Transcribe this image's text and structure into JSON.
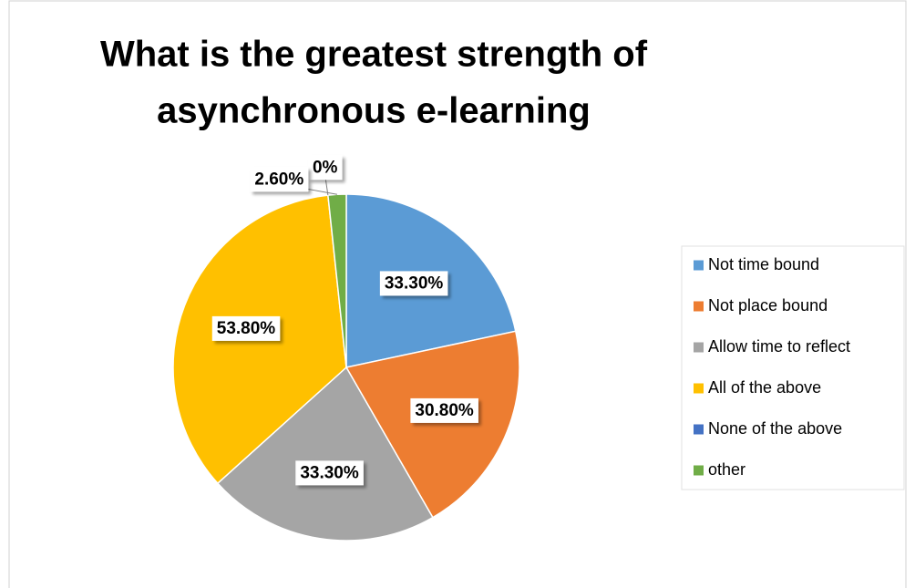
{
  "chart_data": {
    "type": "pie",
    "title": [
      "What is the greatest strength of",
      "asynchronous e-learning"
    ],
    "categories": [
      "Not time bound",
      "Not place bound",
      "Allow time to reflect",
      "All of the above",
      "None of the above",
      "other"
    ],
    "values": [
      33.3,
      30.8,
      33.3,
      53.8,
      0,
      2.6
    ],
    "value_labels": [
      "33.30%",
      "30.80%",
      "33.30%",
      "53.80%",
      "0%",
      "2.60%"
    ],
    "colors": [
      "#5b9bd5",
      "#ed7d31",
      "#a5a5a5",
      "#ffc000",
      "#4472c4",
      "#70ad47"
    ],
    "legend": "right"
  }
}
